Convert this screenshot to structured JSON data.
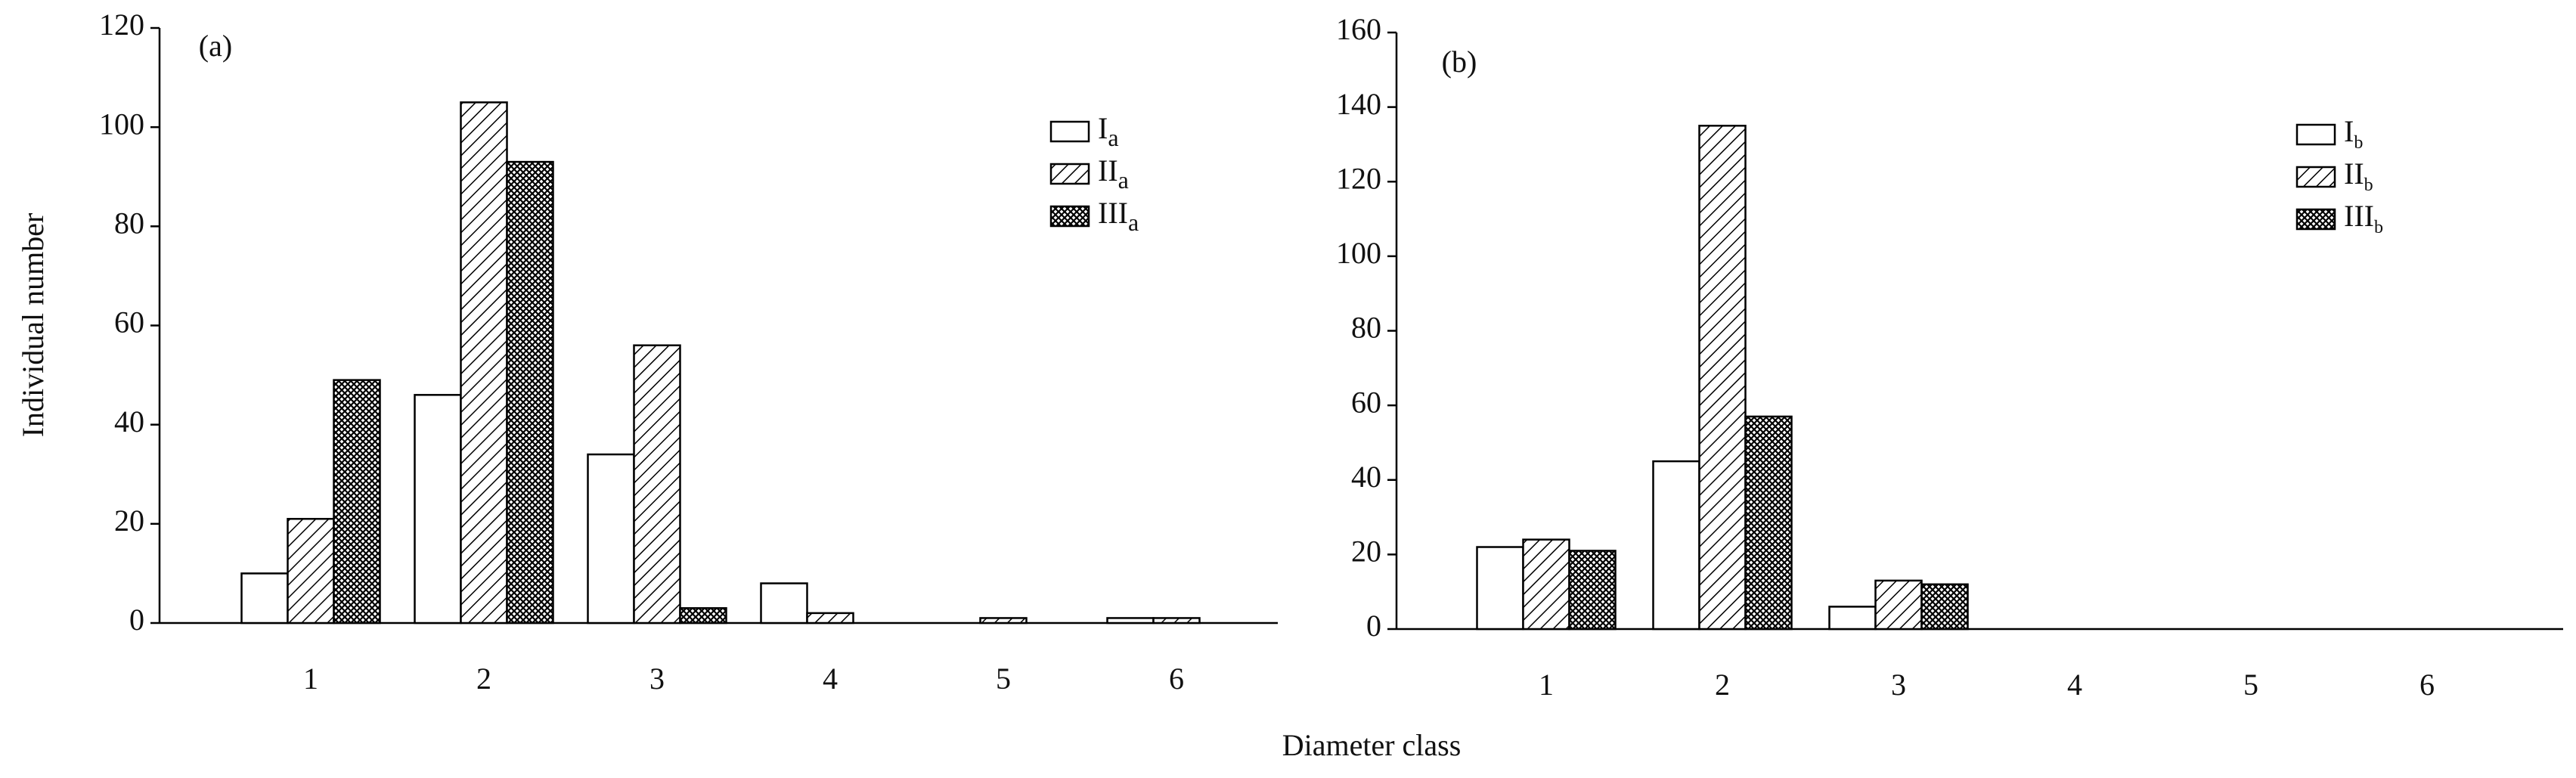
{
  "chart_data": [
    {
      "type": "bar",
      "title": "(a)",
      "ylabel": "Individual number",
      "xlabel": "Diameter class",
      "categories": [
        "1",
        "2",
        "3",
        "4",
        "5",
        "6"
      ],
      "series": [
        {
          "name": "I",
          "subscript": "a",
          "color": "white",
          "values": [
            10,
            46,
            34,
            8,
            0,
            1
          ]
        },
        {
          "name": "II",
          "subscript": "a",
          "color": "hatch",
          "values": [
            21,
            105,
            56,
            2,
            1,
            1
          ]
        },
        {
          "name": "III",
          "subscript": "a",
          "color": "crosshatch",
          "values": [
            49,
            93,
            3,
            0,
            0,
            0
          ]
        }
      ],
      "ylim": [
        0,
        120
      ],
      "yticks": [
        0,
        20,
        40,
        60,
        80,
        100,
        120
      ]
    },
    {
      "type": "bar",
      "title": "(b)",
      "categories": [
        "1",
        "2",
        "3",
        "4",
        "5",
        "6"
      ],
      "series": [
        {
          "name": "I",
          "subscript": "b",
          "color": "white",
          "values": [
            22,
            45,
            6,
            0,
            0,
            0
          ]
        },
        {
          "name": "II",
          "subscript": "b",
          "color": "hatch",
          "values": [
            24,
            135,
            13,
            0,
            0,
            0
          ]
        },
        {
          "name": "III",
          "subscript": "b",
          "color": "crosshatch",
          "values": [
            21,
            57,
            12,
            0,
            0,
            0
          ]
        }
      ],
      "ylim": [
        0,
        160
      ],
      "yticks": [
        0,
        20,
        40,
        60,
        80,
        100,
        120,
        140,
        160
      ]
    }
  ]
}
